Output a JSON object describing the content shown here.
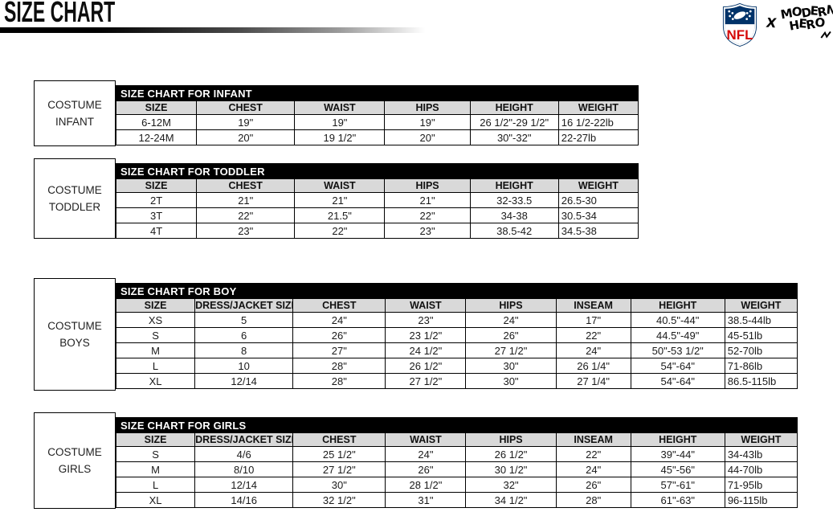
{
  "header": {
    "title": "SIZE CHART",
    "nfl_text": "NFL",
    "collab_separator": "X",
    "modern_hero_line1": "MODERN",
    "modern_hero_line2": "HERO"
  },
  "colors": {
    "title_bar_bg": "#000000",
    "title_bar_text": "#FFFFFF",
    "column_header_bg": "#D9D9D9",
    "table_border": "#000000",
    "nfl_blue": "#013369",
    "nfl_red": "#D50A0A"
  },
  "tables": [
    {
      "side_label_line1": "COSTUME",
      "side_label_line2": "INFANT",
      "title": "SIZE CHART FOR INFANT",
      "columns": [
        "SIZE",
        "CHEST",
        "WAIST",
        "HIPS",
        "HEIGHT",
        "WEIGHT"
      ],
      "rows": [
        [
          "6-12M",
          "19\"",
          "19\"",
          "19\"",
          "26 1/2\"-29 1/2\"",
          "16 1/2-22lb"
        ],
        [
          "12-24M",
          "20\"",
          "19 1/2\"",
          "20\"",
          "30\"-32\"",
          "22-27lb"
        ]
      ]
    },
    {
      "side_label_line1": "COSTUME",
      "side_label_line2": "TODDLER",
      "title": "SIZE CHART FOR TODDLER",
      "columns": [
        "SIZE",
        "CHEST",
        "WAIST",
        "HIPS",
        "HEIGHT",
        "WEIGHT"
      ],
      "rows": [
        [
          "2T",
          "21\"",
          "21\"",
          "21\"",
          "32-33.5",
          "26.5-30"
        ],
        [
          "3T",
          "22\"",
          "21.5\"",
          "22\"",
          "34-38",
          "30.5-34"
        ],
        [
          "4T",
          "23\"",
          "22\"",
          "23\"",
          "38.5-42",
          "34.5-38"
        ]
      ]
    },
    {
      "side_label_line1": "COSTUME",
      "side_label_line2": "BOYS",
      "title": "SIZE CHART FOR BOY",
      "columns": [
        "SIZE",
        "DRESS/JACKET SIZE",
        "CHEST",
        "WAIST",
        "HIPS",
        "INSEAM",
        "HEIGHT",
        "WEIGHT"
      ],
      "rows": [
        [
          "XS",
          "5",
          "24\"",
          "23\"",
          "24\"",
          "17\"",
          "40.5\"-44\"",
          "38.5-44lb"
        ],
        [
          "S",
          "6",
          "26\"",
          "23 1/2\"",
          "26\"",
          "22\"",
          "44.5\"-49\"",
          "45-51lb"
        ],
        [
          "M",
          "8",
          "27\"",
          "24 1/2\"",
          "27 1/2\"",
          "24\"",
          "50\"-53 1/2\"",
          "52-70lb"
        ],
        [
          "L",
          "10",
          "28\"",
          "26 1/2\"",
          "30\"",
          "26 1/4\"",
          "54\"-64\"",
          "71-86lb"
        ],
        [
          "XL",
          "12/14",
          "28\"",
          "27 1/2\"",
          "30\"",
          "27 1/4\"",
          "54\"-64\"",
          "86.5-115lb"
        ]
      ]
    },
    {
      "side_label_line1": "COSTUME",
      "side_label_line2": "GIRLS",
      "title": "SIZE CHART FOR GIRLS",
      "columns": [
        "SIZE",
        "DRESS/JACKET SIZE",
        "CHEST",
        "WAIST",
        "HIPS",
        "INSEAM",
        "HEIGHT",
        "WEIGHT"
      ],
      "rows": [
        [
          "S",
          "4/6",
          "25 1/2\"",
          "24\"",
          "26 1/2\"",
          "22\"",
          "39\"-44\"",
          "34-43lb"
        ],
        [
          "M",
          "8/10",
          "27 1/2\"",
          "26\"",
          "30 1/2\"",
          "24\"",
          "45\"-56\"",
          "44-70lb"
        ],
        [
          "L",
          "12/14",
          "30\"",
          "28 1/2\"",
          "32\"",
          "26\"",
          "57\"-61\"",
          "71-95lb"
        ],
        [
          "XL",
          "14/16",
          "32 1/2\"",
          "31\"",
          "34 1/2\"",
          "28\"",
          "61\"-63\"",
          "96-115lb"
        ]
      ]
    }
  ]
}
